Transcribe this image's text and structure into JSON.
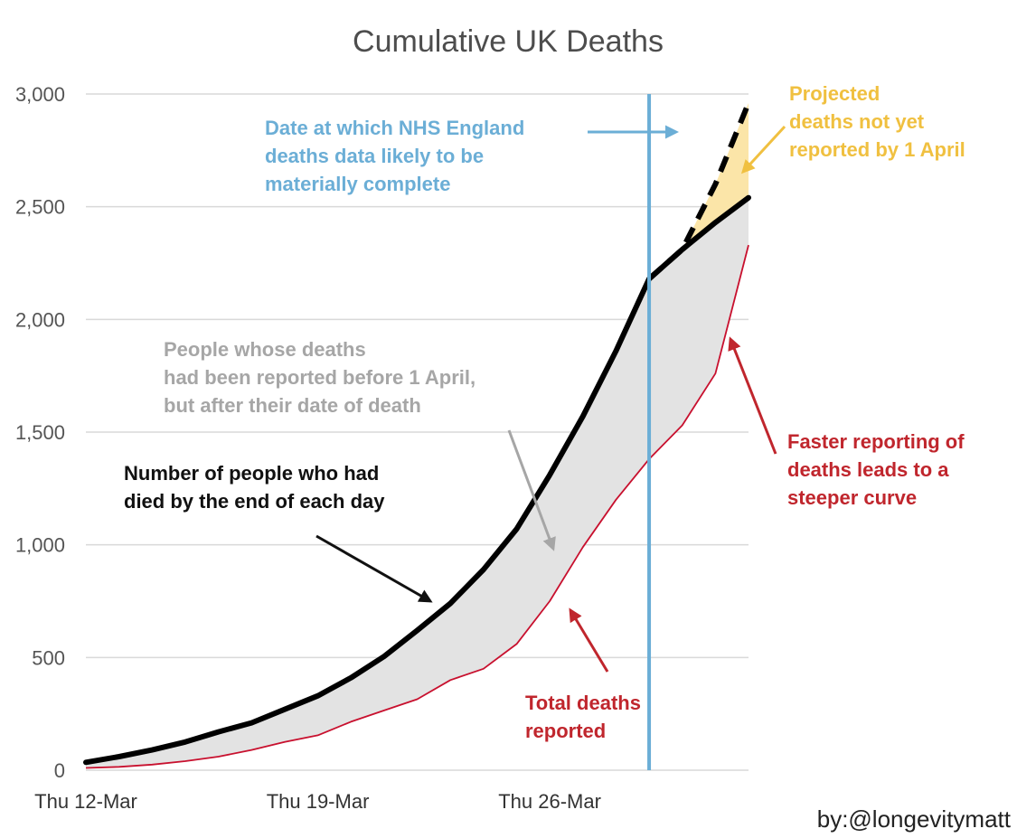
{
  "chart_data": {
    "type": "line",
    "title": "Cumulative UK Deaths",
    "xlabel": "",
    "ylabel": "",
    "ylim": [
      0,
      3000
    ],
    "yticks": [
      0,
      500,
      1000,
      1500,
      2000,
      2500,
      3000
    ],
    "ytick_labels": [
      "0",
      "500",
      "1,000",
      "1,500",
      "2,000",
      "2,500",
      "3,000"
    ],
    "x": [
      "2020-03-12",
      "2020-03-13",
      "2020-03-14",
      "2020-03-15",
      "2020-03-16",
      "2020-03-17",
      "2020-03-18",
      "2020-03-19",
      "2020-03-20",
      "2020-03-21",
      "2020-03-22",
      "2020-03-23",
      "2020-03-24",
      "2020-03-25",
      "2020-03-26",
      "2020-03-27",
      "2020-03-28",
      "2020-03-29",
      "2020-03-30",
      "2020-03-31",
      "2020-04-01"
    ],
    "xtick_labels": [
      {
        "x": "2020-03-12",
        "label": "Thu 12-Mar"
      },
      {
        "x": "2020-03-19",
        "label": "Thu 19-Mar"
      },
      {
        "x": "2020-03-26",
        "label": "Thu 26-Mar"
      }
    ],
    "grid": true,
    "legend": "none",
    "series": [
      {
        "values": [
          35,
          60,
          90,
          125,
          170,
          210,
          270,
          330,
          410,
          505,
          620,
          740,
          890,
          1070,
          1310,
          1570,
          1860,
          2180,
          2310,
          2430,
          2540
        ],
        "color": "#000000"
      },
      {
        "values": [
          10,
          15,
          25,
          40,
          60,
          90,
          125,
          155,
          215,
          265,
          315,
          400,
          450,
          560,
          750,
          990,
          1200,
          1380,
          1530,
          1760,
          2330
        ],
        "color": "#c8102e"
      },
      {
        "x": [
          "2020-03-29",
          "2020-03-30",
          "2020-03-31",
          "2020-04-01"
        ],
        "values": [
          2180,
          2310,
          2600,
          2960
        ],
        "color": "#000000",
        "dashed": true
      }
    ],
    "vline": {
      "x": "2020-03-29",
      "color": "#6baed6"
    },
    "annotations": [
      {
        "text": [
          "Date at which NHS England",
          "deaths data likely to be",
          "materially complete"
        ],
        "color": "#6baed6"
      },
      {
        "text": [
          "Projected",
          "deaths not yet",
          "reported by 1 April"
        ],
        "color": "#f0c040"
      },
      {
        "text": [
          "People whose deaths",
          "had been reported before 1 April,",
          "but after their date of death"
        ],
        "color": "#a6a6a6"
      },
      {
        "text": [
          "Number of people who had",
          "died by the end of each day"
        ],
        "color": "#111111"
      },
      {
        "text": [
          "Faster reporting of",
          "deaths leads to a",
          "steeper curve"
        ],
        "color": "#c0262d"
      },
      {
        "text": [
          "Total deaths",
          "reported"
        ],
        "color": "#c0262d"
      }
    ],
    "colors": {
      "gap_fill": "#e3e3e3",
      "projection_fill": "#fbe5a8",
      "grid": "#d9d9d9"
    }
  },
  "credit": "by:@longevitymatt"
}
